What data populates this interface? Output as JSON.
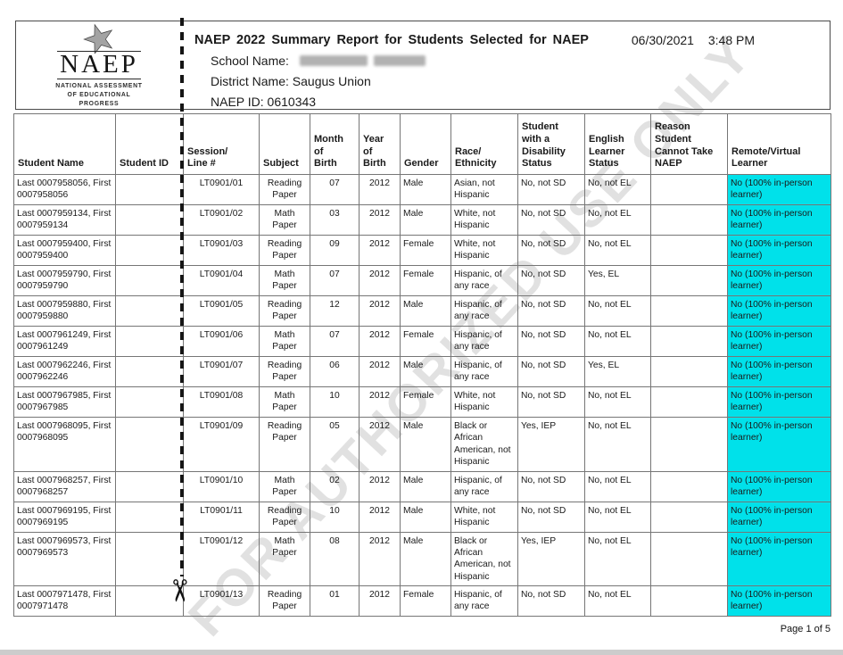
{
  "page": {
    "title": "NAEP 2022 Summary Report for Students Selected for NAEP",
    "date": "06/30/2021",
    "time": "3:48 PM",
    "school_name_label": "School Name:",
    "district_name_label": "District Name:",
    "district_name_value": "Saugus Union",
    "naep_id_label": "NAEP ID:",
    "naep_id_value": "0610343",
    "watermark": "FOR AUTHORIZED USE ONLY",
    "footer": "Page 1 of 5"
  },
  "logo": {
    "acronym": "NAEP",
    "subtitle": "NATIONAL ASSESSMENT\nOF EDUCATIONAL\nPROGRESS",
    "star_icon": "star-icon"
  },
  "colors": {
    "highlight_cyan": "#00E1EA",
    "table_border_gray": "#767676"
  },
  "table": {
    "column_keys": [
      "name",
      "id",
      "session",
      "subject",
      "month",
      "year",
      "gender",
      "race",
      "sd",
      "el",
      "reason",
      "remote"
    ],
    "columns": [
      "Student Name",
      "Student ID",
      "Session/\nLine #",
      "Subject",
      "Month\nof\nBirth",
      "Year\nof\nBirth",
      "Gender",
      "Race/\nEthnicity",
      "Student\nwith a\nDisability\nStatus",
      "English\nLearner\nStatus",
      "Reason\nStudent\nCannot Take\nNAEP",
      "Remote/Virtual\nLearner"
    ],
    "rows": [
      {
        "name": "Last 0007958056, First 0007958056",
        "id": "",
        "session": "LT0901/01",
        "subject": "Reading Paper",
        "month": "07",
        "year": "2012",
        "gender": "Male",
        "race": "Asian, not Hispanic",
        "sd": "No, not SD",
        "el": "No, not EL",
        "reason": "",
        "remote": "No (100% in-person learner)"
      },
      {
        "name": "Last 0007959134, First 0007959134",
        "id": "",
        "session": "LT0901/02",
        "subject": "Math Paper",
        "month": "03",
        "year": "2012",
        "gender": "Male",
        "race": "White, not Hispanic",
        "sd": "No, not SD",
        "el": "No, not EL",
        "reason": "",
        "remote": "No (100% in-person learner)"
      },
      {
        "name": "Last 0007959400, First 0007959400",
        "id": "",
        "session": "LT0901/03",
        "subject": "Reading Paper",
        "month": "09",
        "year": "2012",
        "gender": "Female",
        "race": "White, not Hispanic",
        "sd": "No, not SD",
        "el": "No, not EL",
        "reason": "",
        "remote": "No (100% in-person learner)"
      },
      {
        "name": "Last 0007959790, First 0007959790",
        "id": "",
        "session": "LT0901/04",
        "subject": "Math Paper",
        "month": "07",
        "year": "2012",
        "gender": "Female",
        "race": "Hispanic, of any race",
        "sd": "No, not SD",
        "el": "Yes, EL",
        "reason": "",
        "remote": "No (100% in-person learner)"
      },
      {
        "name": "Last 0007959880, First 0007959880",
        "id": "",
        "session": "LT0901/05",
        "subject": "Reading Paper",
        "month": "12",
        "year": "2012",
        "gender": "Male",
        "race": "Hispanic, of any race",
        "sd": "No, not SD",
        "el": "No, not EL",
        "reason": "",
        "remote": "No (100% in-person learner)"
      },
      {
        "name": "Last 0007961249, First 0007961249",
        "id": "",
        "session": "LT0901/06",
        "subject": "Math Paper",
        "month": "07",
        "year": "2012",
        "gender": "Female",
        "race": "Hispanic, of any race",
        "sd": "No, not SD",
        "el": "No, not EL",
        "reason": "",
        "remote": "No (100% in-person learner)"
      },
      {
        "name": "Last 0007962246, First 0007962246",
        "id": "",
        "session": "LT0901/07",
        "subject": "Reading Paper",
        "month": "06",
        "year": "2012",
        "gender": "Male",
        "race": "Hispanic, of any race",
        "sd": "No, not SD",
        "el": "Yes, EL",
        "reason": "",
        "remote": "No (100% in-person learner)"
      },
      {
        "name": "Last 0007967985, First 0007967985",
        "id": "",
        "session": "LT0901/08",
        "subject": "Math Paper",
        "month": "10",
        "year": "2012",
        "gender": "Female",
        "race": "White, not Hispanic",
        "sd": "No, not SD",
        "el": "No, not EL",
        "reason": "",
        "remote": "No (100% in-person learner)"
      },
      {
        "name": "Last 0007968095, First 0007968095",
        "id": "",
        "session": "LT0901/09",
        "subject": "Reading Paper",
        "month": "05",
        "year": "2012",
        "gender": "Male",
        "race": "Black or African American, not Hispanic",
        "sd": "Yes, IEP",
        "el": "No, not EL",
        "reason": "",
        "remote": "No (100% in-person learner)"
      },
      {
        "name": "Last 0007968257, First 0007968257",
        "id": "",
        "session": "LT0901/10",
        "subject": "Math Paper",
        "month": "02",
        "year": "2012",
        "gender": "Male",
        "race": "Hispanic, of any race",
        "sd": "No, not SD",
        "el": "No, not EL",
        "reason": "",
        "remote": "No (100% in-person learner)"
      },
      {
        "name": "Last 0007969195, First 0007969195",
        "id": "",
        "session": "LT0901/11",
        "subject": "Reading Paper",
        "month": "10",
        "year": "2012",
        "gender": "Male",
        "race": "White, not Hispanic",
        "sd": "No, not SD",
        "el": "No, not EL",
        "reason": "",
        "remote": "No (100% in-person learner)"
      },
      {
        "name": "Last 0007969573, First 0007969573",
        "id": "",
        "session": "LT0901/12",
        "subject": "Math Paper",
        "month": "08",
        "year": "2012",
        "gender": "Male",
        "race": "Black or African American, not Hispanic",
        "sd": "Yes, IEP",
        "el": "No, not EL",
        "reason": "",
        "remote": "No (100% in-person learner)"
      },
      {
        "name": "Last 0007971478, First 0007971478",
        "id": "",
        "session": "LT0901/13",
        "subject": "Reading Paper",
        "month": "01",
        "year": "2012",
        "gender": "Female",
        "race": "Hispanic, of any race",
        "sd": "No, not SD",
        "el": "No, not EL",
        "reason": "",
        "remote": "No (100% in-person learner)"
      }
    ]
  }
}
